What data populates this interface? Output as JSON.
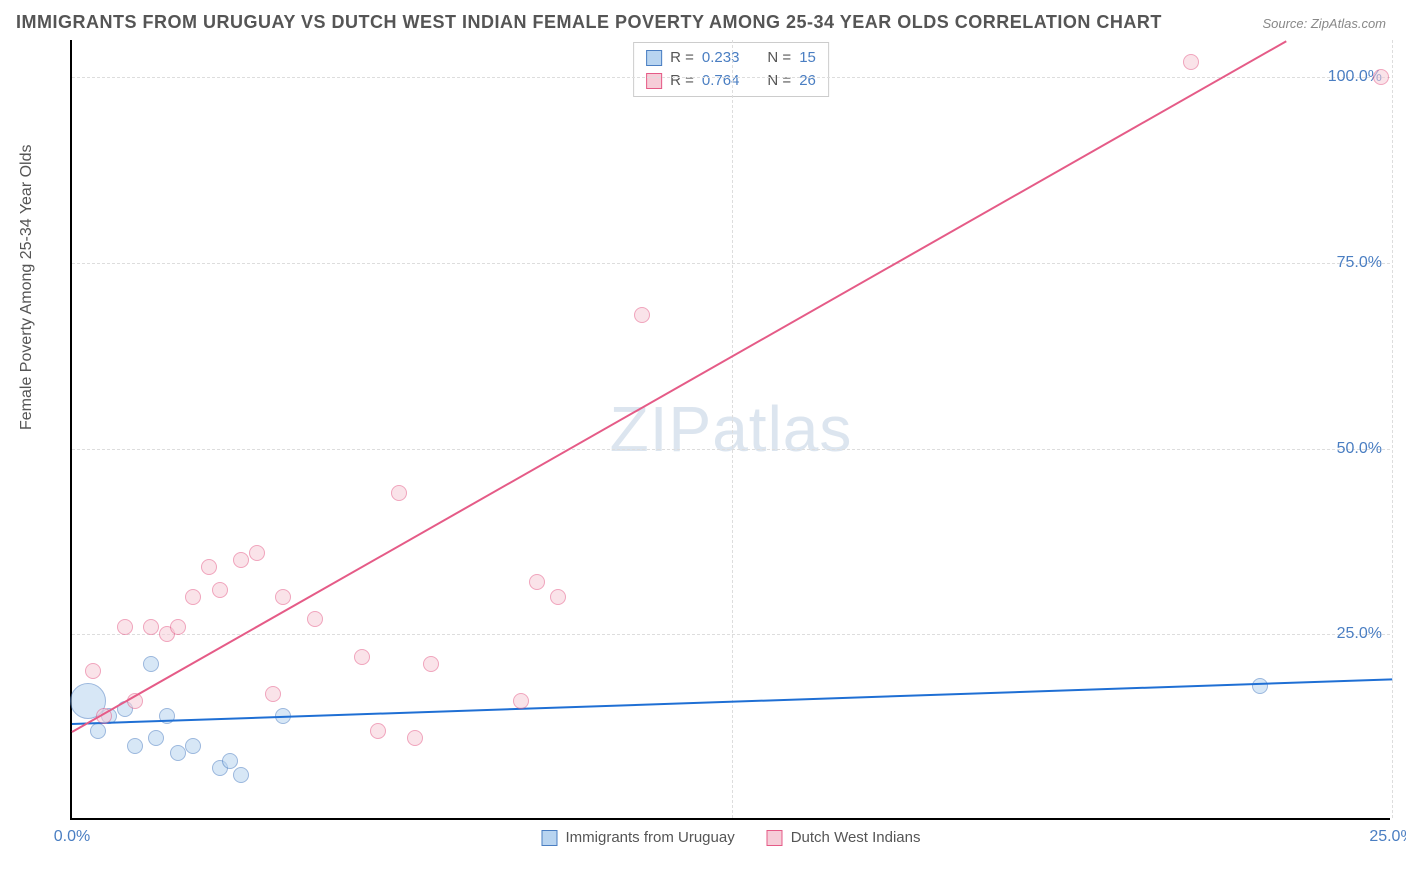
{
  "title": "IMMIGRANTS FROM URUGUAY VS DUTCH WEST INDIAN FEMALE POVERTY AMONG 25-34 YEAR OLDS CORRELATION CHART",
  "source": "Source: ZipAtlas.com",
  "watermark": "ZIPatlas",
  "y_axis_label": "Female Poverty Among 25-34 Year Olds",
  "chart": {
    "type": "scatter",
    "xlim": [
      0,
      25
    ],
    "ylim": [
      0,
      105
    ],
    "x_ticks": [
      0,
      12.5,
      25
    ],
    "x_tick_labels": [
      "0.0%",
      "",
      "25.0%"
    ],
    "y_ticks": [
      25,
      50,
      75,
      100
    ],
    "y_tick_labels": [
      "25.0%",
      "50.0%",
      "75.0%",
      "100.0%"
    ],
    "grid_color": "#dddddd",
    "background_color": "#ffffff",
    "point_radius": 8,
    "point_opacity": 0.55,
    "point_stroke_width": 1
  },
  "series": [
    {
      "name": "Immigrants from Uruguay",
      "color_fill": "#b8d4f0",
      "color_stroke": "#4a7ec2",
      "trend_color": "#1f6fd4",
      "R": "0.233",
      "N": "15",
      "trend": {
        "x1": 0,
        "y1": 13,
        "x2": 25,
        "y2": 19
      },
      "points": [
        {
          "x": 0.3,
          "y": 16,
          "r": 18
        },
        {
          "x": 0.5,
          "y": 12,
          "r": 8
        },
        {
          "x": 0.7,
          "y": 14,
          "r": 8
        },
        {
          "x": 1.0,
          "y": 15,
          "r": 8
        },
        {
          "x": 1.2,
          "y": 10,
          "r": 8
        },
        {
          "x": 1.5,
          "y": 21,
          "r": 8
        },
        {
          "x": 1.6,
          "y": 11,
          "r": 8
        },
        {
          "x": 1.8,
          "y": 14,
          "r": 8
        },
        {
          "x": 2.0,
          "y": 9,
          "r": 8
        },
        {
          "x": 2.3,
          "y": 10,
          "r": 8
        },
        {
          "x": 2.8,
          "y": 7,
          "r": 8
        },
        {
          "x": 3.0,
          "y": 8,
          "r": 8
        },
        {
          "x": 3.2,
          "y": 6,
          "r": 8
        },
        {
          "x": 4.0,
          "y": 14,
          "r": 8
        },
        {
          "x": 22.5,
          "y": 18,
          "r": 8
        }
      ]
    },
    {
      "name": "Dutch West Indians",
      "color_fill": "#f6cdd8",
      "color_stroke": "#e55b87",
      "trend_color": "#e55b87",
      "R": "0.764",
      "N": "26",
      "trend": {
        "x1": 0,
        "y1": 12,
        "x2": 23,
        "y2": 105
      },
      "points": [
        {
          "x": 0.4,
          "y": 20,
          "r": 8
        },
        {
          "x": 0.6,
          "y": 14,
          "r": 8
        },
        {
          "x": 1.0,
          "y": 26,
          "r": 8
        },
        {
          "x": 1.2,
          "y": 16,
          "r": 8
        },
        {
          "x": 1.5,
          "y": 26,
          "r": 8
        },
        {
          "x": 1.8,
          "y": 25,
          "r": 8
        },
        {
          "x": 2.0,
          "y": 26,
          "r": 8
        },
        {
          "x": 2.3,
          "y": 30,
          "r": 8
        },
        {
          "x": 2.6,
          "y": 34,
          "r": 8
        },
        {
          "x": 2.8,
          "y": 31,
          "r": 8
        },
        {
          "x": 3.2,
          "y": 35,
          "r": 8
        },
        {
          "x": 3.5,
          "y": 36,
          "r": 8
        },
        {
          "x": 3.8,
          "y": 17,
          "r": 8
        },
        {
          "x": 4.0,
          "y": 30,
          "r": 8
        },
        {
          "x": 4.6,
          "y": 27,
          "r": 8
        },
        {
          "x": 5.5,
          "y": 22,
          "r": 8
        },
        {
          "x": 5.8,
          "y": 12,
          "r": 8
        },
        {
          "x": 6.2,
          "y": 44,
          "r": 8
        },
        {
          "x": 6.5,
          "y": 11,
          "r": 8
        },
        {
          "x": 6.8,
          "y": 21,
          "r": 8
        },
        {
          "x": 8.5,
          "y": 16,
          "r": 8
        },
        {
          "x": 8.8,
          "y": 32,
          "r": 8
        },
        {
          "x": 9.2,
          "y": 30,
          "r": 8
        },
        {
          "x": 10.8,
          "y": 68,
          "r": 8
        },
        {
          "x": 21.2,
          "y": 102,
          "r": 8
        },
        {
          "x": 24.8,
          "y": 100,
          "r": 8
        }
      ]
    }
  ],
  "legend_top": {
    "r_label": "R =",
    "n_label": "N ="
  },
  "legend_bottom": {}
}
